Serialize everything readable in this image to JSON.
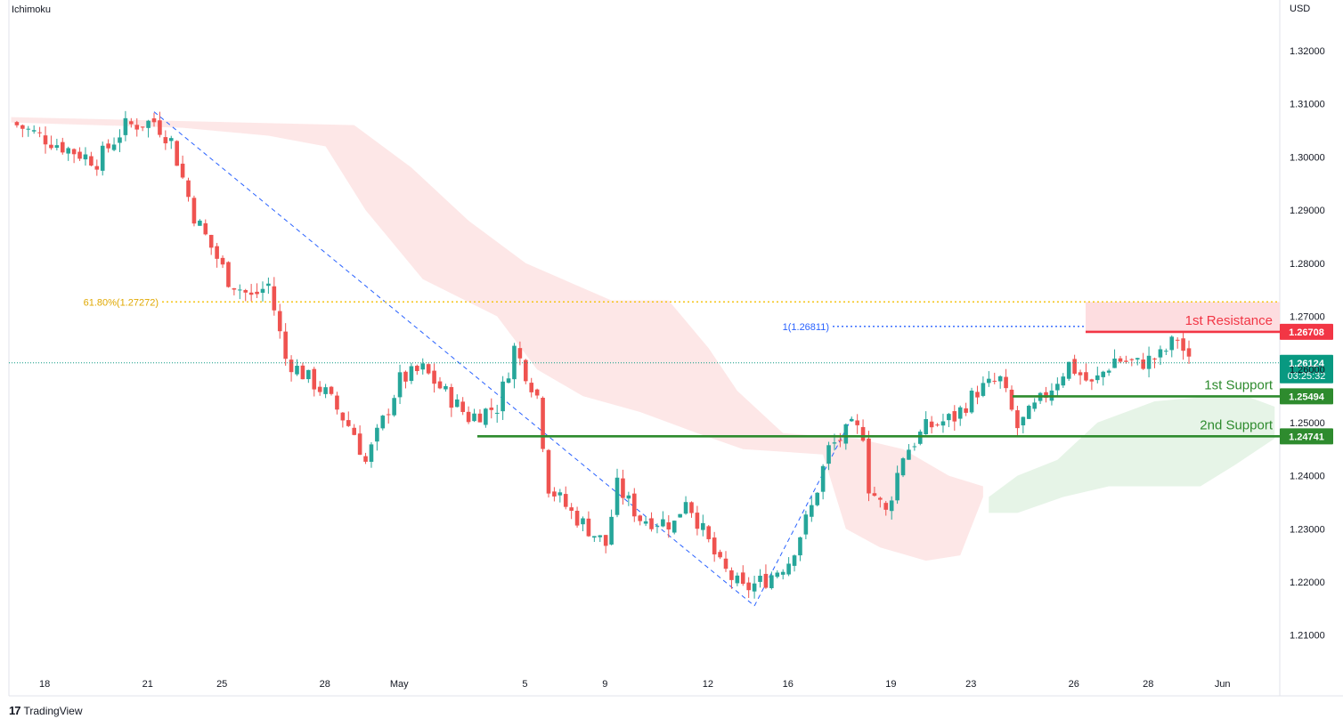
{
  "indicator_label": "Ichimoku",
  "currency_label": "USD",
  "brand": {
    "name": "TradingView",
    "logo_text": "17"
  },
  "colors": {
    "bull": "#26a69a",
    "bear": "#ef5350",
    "resistance": "#f23645",
    "support": "#2e8b2e",
    "fib": "#f5c518",
    "target": "#2962ff",
    "cloud_bear": "#fde3e3",
    "cloud_bull": "#e3f3e4",
    "current": "#089981"
  },
  "chart_data": {
    "type": "candlestick",
    "ylim": [
      1.205,
      1.325
    ],
    "y_ticks": [
      "1.32000",
      "1.31000",
      "1.30000",
      "1.29000",
      "1.28000",
      "1.27000",
      "1.26000",
      "1.25000",
      "1.24000",
      "1.23000",
      "1.22000",
      "1.21000"
    ],
    "x_ticks": [
      {
        "label": "18",
        "i": 4
      },
      {
        "label": "21",
        "i": 22
      },
      {
        "label": "25",
        "i": 35
      },
      {
        "label": "28",
        "i": 53
      },
      {
        "label": "May",
        "i": 66
      },
      {
        "label": "5",
        "i": 88
      },
      {
        "label": "9",
        "i": 102
      },
      {
        "label": "12",
        "i": 120
      },
      {
        "label": "16",
        "i": 134
      },
      {
        "label": "19",
        "i": 152
      },
      {
        "label": "23",
        "i": 166
      },
      {
        "label": "26",
        "i": 184
      },
      {
        "label": "28",
        "i": 197
      },
      {
        "label": "Jun",
        "i": 210
      }
    ],
    "close_path": [
      [
        0,
        1.3065
      ],
      [
        10,
        1.3015
      ],
      [
        15,
        1.2992
      ],
      [
        20,
        1.3058
      ],
      [
        25,
        1.3067
      ],
      [
        28,
        1.303
      ],
      [
        32,
        1.289
      ],
      [
        38,
        1.277
      ],
      [
        42,
        1.2735
      ],
      [
        45,
        1.276
      ],
      [
        48,
        1.262
      ],
      [
        55,
        1.2555
      ],
      [
        60,
        1.248
      ],
      [
        62,
        1.2425
      ],
      [
        68,
        1.258
      ],
      [
        72,
        1.26
      ],
      [
        80,
        1.251
      ],
      [
        85,
        1.253
      ],
      [
        87,
        1.26
      ],
      [
        88,
        1.264
      ],
      [
        92,
        1.255
      ],
      [
        94,
        1.238
      ],
      [
        98,
        1.233
      ],
      [
        104,
        1.227
      ],
      [
        106,
        1.238
      ],
      [
        110,
        1.232
      ],
      [
        116,
        1.231
      ],
      [
        118,
        1.236
      ],
      [
        124,
        1.223
      ],
      [
        128,
        1.2185
      ],
      [
        132,
        1.2205
      ],
      [
        136,
        1.224
      ],
      [
        140,
        1.234
      ],
      [
        143,
        1.245
      ],
      [
        147,
        1.249
      ],
      [
        149,
        1.248
      ],
      [
        150,
        1.238
      ],
      [
        153,
        1.233
      ],
      [
        156,
        1.244
      ],
      [
        160,
        1.249
      ],
      [
        165,
        1.251
      ],
      [
        169,
        1.256
      ],
      [
        173,
        1.258
      ],
      [
        176,
        1.249
      ],
      [
        180,
        1.254
      ],
      [
        185,
        1.261
      ],
      [
        189,
        1.257
      ],
      [
        193,
        1.262
      ],
      [
        197,
        1.261
      ],
      [
        201,
        1.2625
      ],
      [
        204,
        1.266
      ],
      [
        206,
        1.2612
      ]
    ],
    "resistance": [
      {
        "name": "1st Resistance",
        "value": "1.26708",
        "level": 1.26708
      }
    ],
    "supports": [
      {
        "name": "1st Support",
        "value": "1.25494",
        "level": 1.25494
      },
      {
        "name": "2nd Support",
        "value": "1.24741",
        "level": 1.24741
      }
    ],
    "fib_label": "61.80%(1.27272)",
    "fib_level": 1.27272,
    "target_label": "1(1.26811)",
    "target_level": 1.26811,
    "current_price": {
      "value": "1.26124",
      "countdown": "03:25:32",
      "level": 1.26124
    },
    "swing_high": [
      25,
      1.3085
    ],
    "swing_low": [
      130,
      1.2155
    ],
    "projection_start": [
      130,
      1.2155
    ],
    "projection_end": [
      147,
      1.2508
    ],
    "resistance_zone_top": 1.2727,
    "grid": false,
    "legend": "none"
  }
}
